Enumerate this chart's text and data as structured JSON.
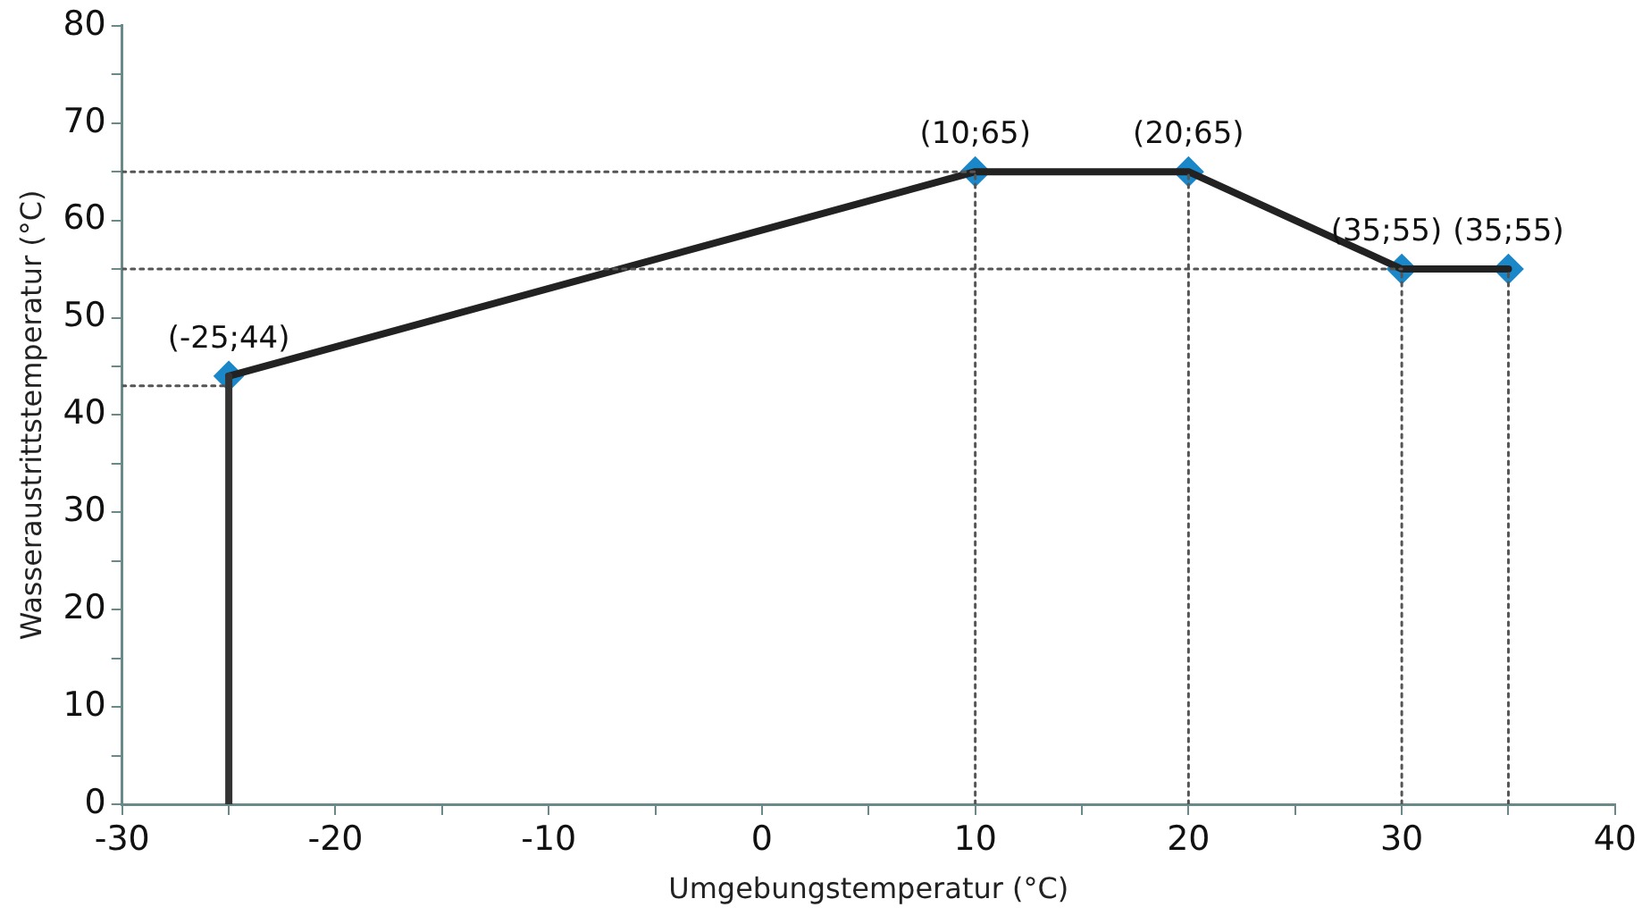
{
  "chart_data": {
    "type": "line",
    "xlabel": "Umgebungstemperatur (°C)",
    "ylabel": "Wasseraustrittstemperatur (°C)",
    "xlim": [
      -30,
      40
    ],
    "xticks": [
      -30,
      {
        "value": -25,
        "label": null
      },
      -20,
      {
        "value": -15,
        "label": null
      },
      -10,
      {
        "value": -5,
        "label": null
      },
      0,
      {
        "value": 5,
        "label": null
      },
      10,
      {
        "value": 15,
        "label": null
      },
      20,
      {
        "value": 25,
        "label": null
      },
      30,
      {
        "value": 35,
        "label": null
      },
      40
    ],
    "ylim": [
      0,
      80
    ],
    "yticks": [
      0,
      {
        "value": 5,
        "label": null
      },
      10,
      {
        "value": 15,
        "label": null
      },
      20,
      {
        "value": 25,
        "label": null
      },
      30,
      {
        "value": 35,
        "label": null
      },
      40,
      {
        "value": 45,
        "label": null
      },
      50,
      {
        "value": 55,
        "label": null
      },
      60,
      {
        "value": 65,
        "label": null
      },
      70,
      {
        "value": 75,
        "label": null
      },
      80
    ],
    "grid": false,
    "legend": false,
    "series": [
      {
        "type": "line",
        "color": "#555555",
        "line_style": "dotted",
        "marker": "none",
        "x": [
          -30,
          -25
        ],
        "values": [
          43,
          43
        ]
      },
      {
        "type": "line",
        "color": "#555555",
        "line_style": "dotted",
        "marker": "none",
        "x": [
          -30,
          10
        ],
        "values": [
          65,
          65
        ]
      },
      {
        "type": "line",
        "color": "#555555",
        "line_style": "dotted",
        "marker": "none",
        "x": [
          -30,
          30
        ],
        "values": [
          55,
          55
        ]
      },
      {
        "type": "line",
        "color": "#555555",
        "line_style": "dotted",
        "marker": "none",
        "x": [
          10,
          10
        ],
        "values": [
          0,
          65
        ]
      },
      {
        "type": "line",
        "color": "#555555",
        "line_style": "dotted",
        "marker": "none",
        "x": [
          20,
          20
        ],
        "values": [
          0,
          65
        ]
      },
      {
        "type": "line",
        "color": "#555555",
        "line_style": "dotted",
        "marker": "none",
        "x": [
          30,
          30
        ],
        "values": [
          0,
          55
        ]
      },
      {
        "type": "line",
        "color": "#555555",
        "line_style": "dotted",
        "marker": "none",
        "x": [
          35,
          35
        ],
        "values": [
          0,
          55
        ]
      },
      {
        "type": "line",
        "color": "#333333",
        "line_style": "solid",
        "marker": "none",
        "x": [
          -25,
          -25
        ],
        "values": [
          0,
          44
        ]
      },
      {
        "color": "#222222",
        "line_style": "solid",
        "marker": "none",
        "x": [
          -25,
          10,
          20,
          30,
          35
        ],
        "values": [
          44,
          65,
          65,
          55,
          55
        ]
      },
      {
        "type": "scatter",
        "color": "#1a87c9",
        "marker": "diamond",
        "x": [
          -25,
          10,
          20,
          30,
          35
        ],
        "values": [
          44,
          65,
          65,
          55,
          55
        ],
        "value_labels": [
          "(-25;44)",
          "(10;65)",
          "(20;65)",
          "(35;55)",
          "(35;55)"
        ]
      }
    ]
  }
}
